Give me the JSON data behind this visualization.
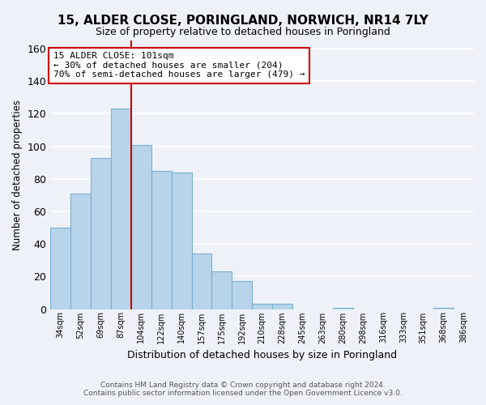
{
  "title": "15, ALDER CLOSE, PORINGLAND, NORWICH, NR14 7LY",
  "subtitle": "Size of property relative to detached houses in Poringland",
  "xlabel": "Distribution of detached houses by size in Poringland",
  "ylabel": "Number of detached properties",
  "bar_color": "#b8d4ea",
  "bar_edge_color": "#7aaed4",
  "categories": [
    "34sqm",
    "52sqm",
    "69sqm",
    "87sqm",
    "104sqm",
    "122sqm",
    "140sqm",
    "157sqm",
    "175sqm",
    "192sqm",
    "210sqm",
    "228sqm",
    "245sqm",
    "263sqm",
    "280sqm",
    "298sqm",
    "316sqm",
    "333sqm",
    "351sqm",
    "368sqm",
    "386sqm"
  ],
  "values": [
    50,
    71,
    93,
    123,
    101,
    85,
    84,
    34,
    23,
    17,
    3,
    3,
    0,
    0,
    1,
    0,
    0,
    0,
    0,
    1,
    0
  ],
  "ylim": [
    0,
    165
  ],
  "yticks": [
    0,
    20,
    40,
    60,
    80,
    100,
    120,
    140,
    160
  ],
  "property_line_bin": 3,
  "annotation_title": "15 ALDER CLOSE: 101sqm",
  "annotation_line1": "← 30% of detached houses are smaller (204)",
  "annotation_line2": "70% of semi-detached houses are larger (479) →",
  "annotation_box_color": "#ffffff",
  "annotation_box_edge": "#cc0000",
  "line_color": "#cc0000",
  "footer1": "Contains HM Land Registry data © Crown copyright and database right 2024.",
  "footer2": "Contains public sector information licensed under the Open Government Licence v3.0.",
  "background_color": "#eef2f8"
}
